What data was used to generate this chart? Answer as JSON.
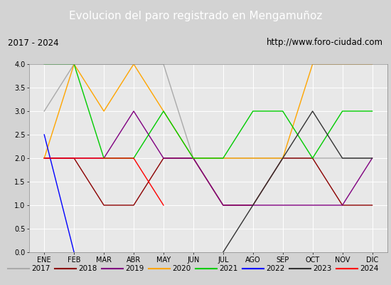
{
  "title": "Evolucion del paro registrado en Mengamuñoz",
  "subtitle_left": "2017 - 2024",
  "subtitle_right": "http://www.foro-ciudad.com",
  "xlabel_months": [
    "ENE",
    "FEB",
    "MAR",
    "ABR",
    "MAY",
    "JUN",
    "JUL",
    "AGO",
    "SEP",
    "OCT",
    "NOV",
    "DIC"
  ],
  "ylim": [
    0.0,
    4.0
  ],
  "yticks": [
    0.0,
    0.5,
    1.0,
    1.5,
    2.0,
    2.5,
    3.0,
    3.5,
    4.0
  ],
  "series": {
    "2017": {
      "color": "#aaaaaa",
      "values": [
        3.0,
        4.0,
        4.0,
        4.0,
        4.0,
        2.0,
        2.0,
        2.0,
        2.0,
        2.0,
        2.0,
        2.0
      ]
    },
    "2018": {
      "color": "#8b0000",
      "values": [
        2.0,
        2.0,
        1.0,
        1.0,
        2.0,
        2.0,
        1.0,
        1.0,
        2.0,
        2.0,
        1.0,
        1.0
      ]
    },
    "2019": {
      "color": "#800080",
      "values": [
        2.0,
        2.0,
        2.0,
        3.0,
        2.0,
        2.0,
        1.0,
        1.0,
        1.0,
        1.0,
        1.0,
        2.0
      ]
    },
    "2020": {
      "color": "#ffa500",
      "values": [
        2.0,
        4.0,
        3.0,
        4.0,
        3.0,
        2.0,
        2.0,
        2.0,
        2.0,
        4.0,
        4.0,
        4.0
      ]
    },
    "2021": {
      "color": "#00cc00",
      "values": [
        4.0,
        4.0,
        2.0,
        2.0,
        3.0,
        2.0,
        2.0,
        3.0,
        3.0,
        2.0,
        3.0,
        3.0
      ]
    },
    "2022": {
      "color": "#0000ff",
      "values": [
        2.5,
        0.0,
        null,
        null,
        null,
        null,
        null,
        null,
        null,
        null,
        null,
        null
      ]
    },
    "2023": {
      "color": "#333333",
      "values": [
        null,
        null,
        null,
        null,
        null,
        null,
        0.0,
        1.0,
        2.0,
        3.0,
        2.0,
        2.0
      ]
    },
    "2024": {
      "color": "#ff0000",
      "values": [
        2.0,
        2.0,
        2.0,
        2.0,
        1.0,
        null,
        null,
        null,
        null,
        null,
        null,
        null
      ]
    }
  },
  "background_color": "#d3d3d3",
  "plot_bg_color": "#e8e8e8",
  "title_bg_color": "#4472c4",
  "title_color": "#ffffff",
  "legend_bg_color": "#d3d3d3",
  "border_color": "#555555"
}
